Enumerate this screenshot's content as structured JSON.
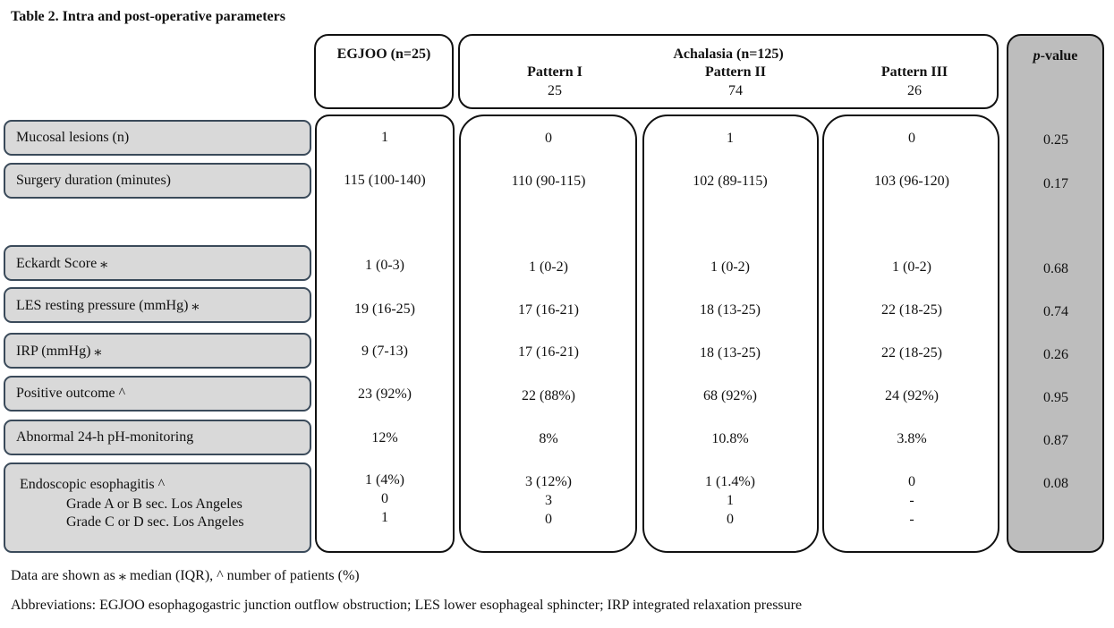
{
  "title": "Table 2. Intra and post-operative parameters",
  "headers": {
    "egjoo": "EGJOO (n=25)",
    "achalasia": "Achalasia (n=125)",
    "p_value_italic": "p",
    "p_value_rest": "-value",
    "patterns": [
      {
        "name": "Pattern I",
        "n": "25"
      },
      {
        "name": "Pattern II",
        "n": "74"
      },
      {
        "name": "Pattern III",
        "n": "26"
      }
    ]
  },
  "rows": [
    {
      "label": "Mucosal lesions (n)",
      "egjoo": "1",
      "p1": "0",
      "p2": "1",
      "p3": "0",
      "p": "0.25"
    },
    {
      "label": "Surgery duration (minutes)",
      "egjoo": "115 (100-140)",
      "p1": "110 (90-115)",
      "p2": "102 (89-115)",
      "p3": "103 (96-120)",
      "p": "0.17"
    },
    {
      "label": "Eckardt Score ⁎",
      "egjoo": "1 (0-3)",
      "p1": "1 (0-2)",
      "p2": "1 (0-2)",
      "p3": "1 (0-2)",
      "p": "0.68"
    },
    {
      "label": "LES resting pressure (mmHg) ⁎",
      "egjoo": "19 (16-25)",
      "p1": "17 (16-21)",
      "p2": "18 (13-25)",
      "p3": "22 (18-25)",
      "p": "0.74"
    },
    {
      "label": "IRP (mmHg) ⁎",
      "egjoo": "9 (7-13)",
      "p1": "17 (16-21)",
      "p2": "18 (13-25)",
      "p3": "22 (18-25)",
      "p": "0.26"
    },
    {
      "label": "Positive outcome ^",
      "egjoo": "23 (92%)",
      "p1": "22 (88%)",
      "p2": "68 (92%)",
      "p3": "24 (92%)",
      "p": "0.95"
    },
    {
      "label": "Abnormal 24-h pH-monitoring",
      "egjoo": "12%",
      "p1": "8%",
      "p2": "10.8%",
      "p3": "3.8%",
      "p": "0.87"
    },
    {
      "label": "Endoscopic esophagitis ^",
      "egjoo": "1 (4%)",
      "p1": "3 (12%)",
      "p2": "1 (1.4%)",
      "p3": "0",
      "p": "0.08"
    }
  ],
  "esophagitis_sub": [
    {
      "label": "Grade A or B sec. Los Angeles",
      "egjoo": "0",
      "p1": "3",
      "p2": "1",
      "p3": "-"
    },
    {
      "label": "Grade C or D sec. Los Angeles",
      "egjoo": "1",
      "p1": "0",
      "p2": "0",
      "p3": "-"
    }
  ],
  "footnotes": {
    "data_note": "Data are shown as ⁎ median (IQR), ^ number of patients (%)",
    "abbreviations": "Abbreviations: EGJOO esophagogastric junction outflow obstruction; LES lower esophageal sphincter; IRP integrated relaxation pressure"
  }
}
